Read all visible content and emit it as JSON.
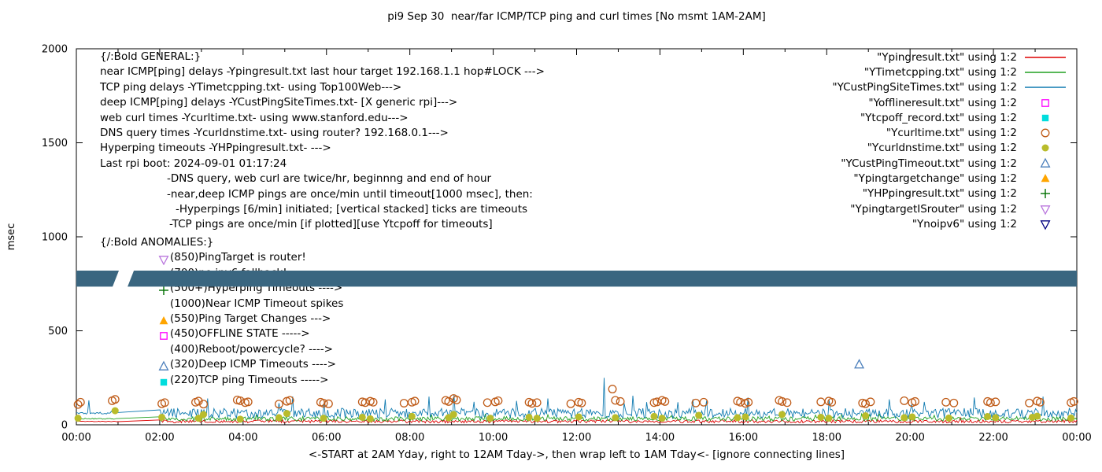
{
  "title": "pi9 Sep 30  near/far ICMP/TCP ping and curl times [No msmt 1AM-2AM]",
  "ylabel": "msec",
  "xlabel": "<-START at 2AM Yday, right to 12AM Tday->, then wrap left to 1AM Tday<- [ignore connecting lines]",
  "axes": {
    "y_ticks": [
      0,
      500,
      1000,
      1500,
      2000
    ],
    "x_ticks": [
      "00:00",
      "02:00",
      "04:00",
      "06:00",
      "08:00",
      "10:00",
      "12:00",
      "14:00",
      "16:00",
      "18:00",
      "20:00",
      "22:00",
      "00:00"
    ]
  },
  "legend": [
    {
      "label": "\"Ypingresult.txt\" using 1:2",
      "key": "line",
      "color": "#dd0000"
    },
    {
      "label": "\"YTimetcpping.txt\" using 1:2",
      "key": "line",
      "color": "#21a121"
    },
    {
      "label": "\"YCustPingSiteTimes.txt\" using 1:2",
      "key": "line",
      "color": "#0f7ab0"
    },
    {
      "label": "\"Yofflineresult.txt\" using 1:2",
      "key": "square-open",
      "color": "#ff00ff"
    },
    {
      "label": "\"Ytcpoff_record.txt\" using 1:2",
      "key": "square-filled",
      "color": "#00dddd"
    },
    {
      "label": "\"Ycurltime.txt\" using 1:2",
      "key": "circle-open",
      "color": "#bf5b17"
    },
    {
      "label": "\"Ycurldnstime.txt\" using 1:2",
      "key": "circle-filled",
      "color": "#b9bc2b"
    },
    {
      "label": "\"YCustPingTimeout.txt\" using 1:2",
      "key": "triangle-up-open",
      "color": "#4a7ebb"
    },
    {
      "label": "\"Ypingtargetchange\" using 1:2",
      "key": "triangle-up-filled",
      "color": "#ffa500"
    },
    {
      "label": "\"YHPpingresult.txt\" using 1:2",
      "key": "plus",
      "color": "#007000"
    },
    {
      "label": "\"YpingtargetISrouter\" using 1:2",
      "key": "triangle-down-open",
      "color": "#b976dd"
    },
    {
      "label": "\"Ynoipv6\" using 1:2",
      "key": "triangle-down-open",
      "color": "#000080"
    }
  ],
  "annotations": {
    "general": [
      {
        "text": "{/:Bold GENERAL:}",
        "indent": 0
      },
      {
        "text": "near ICMP[ping] delays -Ypingresult.txt last hour target 192.168.1.1 hop#LOCK --->",
        "indent": 0
      },
      {
        "text": "TCP ping delays -YTimetcpping.txt- using Top100Web--->",
        "indent": 0
      },
      {
        "text": "deep ICMP[ping] delays -YCustPingSiteTimes.txt- [X generic rpi]--->",
        "indent": 0
      },
      {
        "text": "web curl times -Ycurltime.txt- using www.stanford.edu--->",
        "indent": 0
      },
      {
        "text": "DNS query times -Ycurldnstime.txt- using router? 192.168.0.1--->",
        "indent": 0
      },
      {
        "text": "Hyperping timeouts -YHPpingresult.txt- --->",
        "indent": 0
      },
      {
        "text": "Last rpi boot: 2024-09-01 01:17:24",
        "indent": 0
      },
      {
        "text": "-DNS query, web curl are twice/hr, beginnng and end of hour",
        "indent": 85
      },
      {
        "text": "-near,deep ICMP pings are once/min until timeout[1000 msec], then:",
        "indent": 85
      },
      {
        "text": "-Hyperpings [6/min] initiated; [vertical stacked] ticks are timeouts",
        "indent": 96
      },
      {
        "text": "-TCP pings are once/min [if plotted][use Ytcpoff for timeouts]",
        "indent": 88
      }
    ],
    "anomalies": {
      "header": "{/:Bold ANOMALIES:}",
      "items": [
        {
          "marker": "triangle-down-open",
          "color": "#b976dd",
          "text": "(850)PingTarget is router!"
        },
        {
          "marker": "triangle-down-open",
          "color": "#000080",
          "text": "(700)no ipv6 fallback!",
          "obscured_by_band": true
        },
        {
          "marker": "plus",
          "color": "#007000",
          "text": "(500+)Hyperping Timeouts ---->"
        },
        {
          "marker": null,
          "color": null,
          "text": "(1000)Near ICMP Timeout spikes"
        },
        {
          "marker": "triangle-up-filled",
          "color": "#ffa500",
          "text": "(550)Ping Target Changes --->"
        },
        {
          "marker": "square-open",
          "color": "#ff00ff",
          "text": "(450)OFFLINE STATE ----->"
        },
        {
          "marker": null,
          "color": null,
          "text": "(400)Reboot/powercycle? ---->"
        },
        {
          "marker": "triangle-up-open",
          "color": "#4a7ebb",
          "text": "(320)Deep ICMP Timeouts ---->"
        },
        {
          "marker": "square-filled",
          "color": "#00dddd",
          "text": "(220)TCP ping Timeouts ----->"
        }
      ]
    }
  },
  "chart_data": {
    "type": "line",
    "title": "pi9 Sep 30  near/far ICMP/TCP ping and curl times [No msmt 1AM-2AM]",
    "xlabel": "<-START at 2AM Yday, right to 12AM Tday->, then wrap left to 1AM Tday<- [ignore connecting lines]",
    "ylabel": "msec",
    "x_unit": "hour_of_day",
    "x_range": [
      0,
      24
    ],
    "ylim": [
      0,
      2000
    ],
    "grid": false,
    "legend_position": "top-right",
    "no_measurement_gap_hours": [
      1.0,
      2.0
    ],
    "noise_seed": 42,
    "band": {
      "name": "dark-horizontal-band",
      "y_range_msec": [
        735,
        820
      ],
      "gap_hours": [
        1.02,
        1.38
      ],
      "color": "#3a6680"
    },
    "series": [
      {
        "name": "Ypingresult.txt",
        "style": "line",
        "color": "#dd0000",
        "baseline_msec": 18,
        "noise_amp_msec": 8,
        "spikes": []
      },
      {
        "name": "YTimetcpping.txt",
        "style": "line",
        "color": "#21a121",
        "baseline_msec": 32,
        "noise_amp_msec": 12,
        "spikes": []
      },
      {
        "name": "YCustPingSiteTimes.txt",
        "style": "line",
        "color": "#0f7ab0",
        "baseline_msec": 62,
        "noise_amp_msec": 26,
        "spikes": [
          [
            0.3,
            130
          ],
          [
            3.15,
            140
          ],
          [
            5.19,
            150
          ],
          [
            7.41,
            135
          ],
          [
            8.46,
            150
          ],
          [
            9.06,
            160
          ],
          [
            11.31,
            140
          ],
          [
            12.66,
            250
          ],
          [
            13.35,
            155
          ],
          [
            14.79,
            135
          ],
          [
            16.11,
            145
          ],
          [
            18.06,
            130
          ],
          [
            19.5,
            135
          ],
          [
            21.54,
            145
          ],
          [
            23.19,
            150
          ]
        ]
      },
      {
        "name": "Ycurltime.txt",
        "style": "points",
        "marker": "circle-open",
        "color": "#bf5b17",
        "points": [
          [
            0.04,
            108
          ],
          [
            0.1,
            120
          ],
          [
            0.86,
            128
          ],
          [
            0.93,
            135
          ],
          [
            2.05,
            112
          ],
          [
            2.12,
            118
          ],
          [
            2.86,
            120
          ],
          [
            2.93,
            126
          ],
          [
            3.05,
            110
          ],
          [
            3.86,
            132
          ],
          [
            3.93,
            128
          ],
          [
            4.05,
            118
          ],
          [
            4.12,
            122
          ],
          [
            4.86,
            110
          ],
          [
            5.05,
            125
          ],
          [
            5.12,
            130
          ],
          [
            5.86,
            120
          ],
          [
            5.93,
            115
          ],
          [
            6.05,
            112
          ],
          [
            6.86,
            122
          ],
          [
            6.93,
            118
          ],
          [
            7.05,
            125
          ],
          [
            7.12,
            120
          ],
          [
            7.86,
            115
          ],
          [
            8.05,
            120
          ],
          [
            8.12,
            126
          ],
          [
            8.86,
            130
          ],
          [
            8.93,
            124
          ],
          [
            9.05,
            140
          ],
          [
            9.12,
            132
          ],
          [
            9.86,
            118
          ],
          [
            10.05,
            122
          ],
          [
            10.12,
            128
          ],
          [
            10.86,
            120
          ],
          [
            10.93,
            114
          ],
          [
            11.05,
            118
          ],
          [
            11.86,
            112
          ],
          [
            12.05,
            120
          ],
          [
            12.12,
            116
          ],
          [
            12.86,
            190
          ],
          [
            12.93,
            130
          ],
          [
            13.05,
            124
          ],
          [
            13.86,
            118
          ],
          [
            13.93,
            122
          ],
          [
            14.05,
            130
          ],
          [
            14.12,
            124
          ],
          [
            14.86,
            116
          ],
          [
            15.05,
            120
          ],
          [
            15.86,
            126
          ],
          [
            15.93,
            120
          ],
          [
            16.05,
            114
          ],
          [
            16.12,
            120
          ],
          [
            16.86,
            130
          ],
          [
            16.93,
            124
          ],
          [
            17.05,
            118
          ],
          [
            17.86,
            122
          ],
          [
            18.05,
            126
          ],
          [
            18.12,
            120
          ],
          [
            18.86,
            116
          ],
          [
            18.93,
            112
          ],
          [
            19.05,
            122
          ],
          [
            19.86,
            128
          ],
          [
            20.05,
            118
          ],
          [
            20.12,
            124
          ],
          [
            20.86,
            120
          ],
          [
            21.05,
            116
          ],
          [
            21.86,
            124
          ],
          [
            21.93,
            118
          ],
          [
            22.05,
            122
          ],
          [
            22.86,
            116
          ],
          [
            23.05,
            126
          ],
          [
            23.12,
            120
          ],
          [
            23.86,
            118
          ],
          [
            23.93,
            124
          ]
        ]
      },
      {
        "name": "Ycurldnstime.txt",
        "style": "points",
        "marker": "circle-filled",
        "color": "#b9bc2b",
        "points": [
          [
            0.04,
            35
          ],
          [
            0.93,
            75
          ],
          [
            2.05,
            40
          ],
          [
            2.93,
            35
          ],
          [
            3.05,
            55
          ],
          [
            3.93,
            30
          ],
          [
            4.86,
            38
          ],
          [
            5.05,
            60
          ],
          [
            5.93,
            35
          ],
          [
            6.86,
            40
          ],
          [
            7.05,
            32
          ],
          [
            8.05,
            45
          ],
          [
            8.93,
            38
          ],
          [
            9.05,
            55
          ],
          [
            9.93,
            35
          ],
          [
            10.86,
            40
          ],
          [
            11.05,
            35
          ],
          [
            12.05,
            42
          ],
          [
            12.93,
            38
          ],
          [
            13.86,
            45
          ],
          [
            14.05,
            35
          ],
          [
            14.93,
            50
          ],
          [
            15.86,
            38
          ],
          [
            16.05,
            42
          ],
          [
            16.93,
            55
          ],
          [
            17.86,
            40
          ],
          [
            18.05,
            35
          ],
          [
            18.93,
            48
          ],
          [
            19.86,
            38
          ],
          [
            20.05,
            42
          ],
          [
            20.93,
            36
          ],
          [
            21.86,
            44
          ],
          [
            22.05,
            38
          ],
          [
            22.93,
            40
          ],
          [
            23.05,
            46
          ],
          [
            23.86,
            36
          ]
        ]
      },
      {
        "name": "YCustPingTimeout.txt",
        "style": "points",
        "marker": "triangle-up-open",
        "color": "#4a7ebb",
        "points": [
          [
            18.78,
            320
          ]
        ]
      },
      {
        "name": "Yofflineresult.txt",
        "style": "points",
        "marker": "square-open",
        "color": "#ff00ff",
        "points": []
      },
      {
        "name": "Ytcpoff_record.txt",
        "style": "points",
        "marker": "square-filled",
        "color": "#00dddd",
        "points": []
      },
      {
        "name": "Ypingtargetchange",
        "style": "points",
        "marker": "triangle-up-filled",
        "color": "#ffa500",
        "points": []
      },
      {
        "name": "YHPpingresult.txt",
        "style": "points",
        "marker": "plus",
        "color": "#007000",
        "points": []
      },
      {
        "name": "YpingtargetISrouter",
        "style": "points",
        "marker": "triangle-down-open",
        "color": "#b976dd",
        "points": []
      },
      {
        "name": "Ynoipv6",
        "style": "points",
        "marker": "triangle-down-open",
        "color": "#000080",
        "points": []
      }
    ]
  }
}
